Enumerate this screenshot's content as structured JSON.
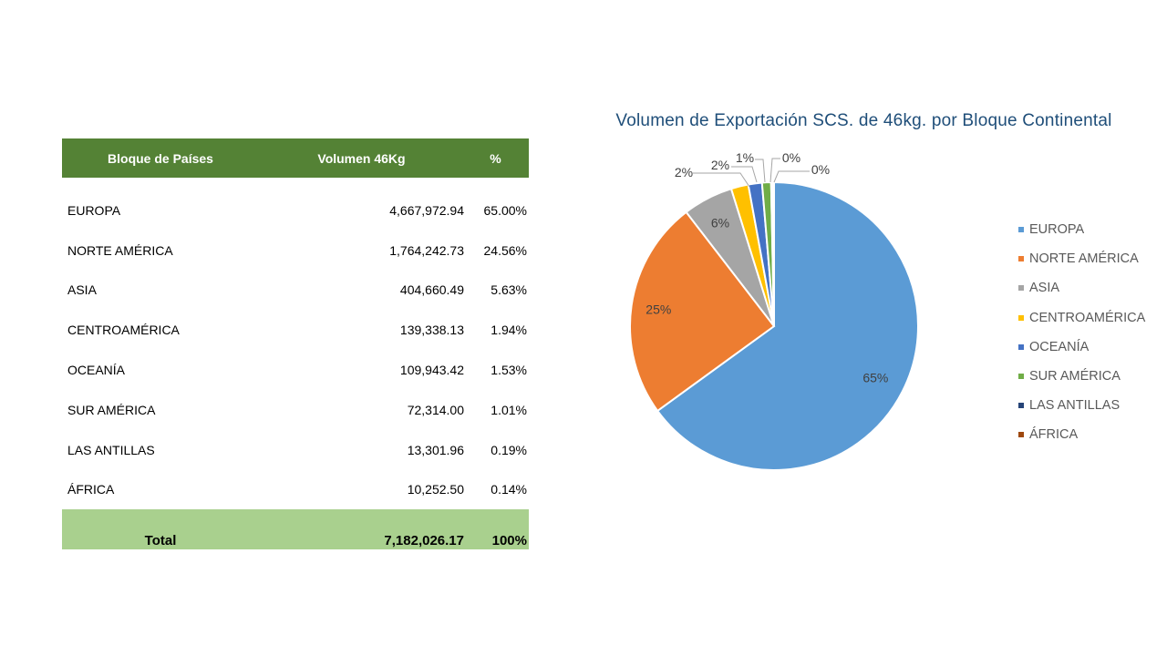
{
  "table": {
    "headers": [
      "Bloque de Países",
      "Volumen 46Kg",
      "%"
    ],
    "rows": [
      {
        "bloque": "EUROPA",
        "volumen": "4,667,972.94",
        "pct": "65.00%"
      },
      {
        "bloque": "NORTE AMÉRICA",
        "volumen": "1,764,242.73",
        "pct": "24.56%"
      },
      {
        "bloque": "ASIA",
        "volumen": "404,660.49",
        "pct": "5.63%"
      },
      {
        "bloque": "CENTROAMÉRICA",
        "volumen": "139,338.13",
        "pct": "1.94%"
      },
      {
        "bloque": "OCEANÍA",
        "volumen": "109,943.42",
        "pct": "1.53%"
      },
      {
        "bloque": "SUR AMÉRICA",
        "volumen": "72,314.00",
        "pct": "1.01%"
      },
      {
        "bloque": "LAS ANTILLAS",
        "volumen": "13,301.96",
        "pct": "0.19%"
      },
      {
        "bloque": "ÁFRICA",
        "volumen": "10,252.50",
        "pct": "0.14%"
      }
    ],
    "total": {
      "label": "Total",
      "volumen": "7,182,026.17",
      "pct": "100%"
    },
    "colors": {
      "header_bg": "#548235",
      "total_bg": "#a9d08e"
    }
  },
  "chart_data": {
    "type": "pie",
    "title": "Volumen de Exportación SCS. de 46kg. por Bloque Continental",
    "categories": [
      "EUROPA",
      "NORTE AMÉRICA",
      "ASIA",
      "CENTROAMÉRICA",
      "OCEANÍA",
      "SUR AMÉRICA",
      "LAS ANTILLAS",
      "ÁFRICA"
    ],
    "values": [
      4667972.94,
      1764242.73,
      404660.49,
      139338.13,
      109943.42,
      72314.0,
      13301.96,
      10252.5
    ],
    "data_labels": [
      "65%",
      "25%",
      "6%",
      "2%",
      "2%",
      "1%",
      "0%",
      "0%"
    ],
    "colors": [
      "#5b9bd5",
      "#ed7d31",
      "#a5a5a5",
      "#ffc000",
      "#4472c4",
      "#70ad47",
      "#264478",
      "#9e480e"
    ],
    "legend_position": "right"
  }
}
